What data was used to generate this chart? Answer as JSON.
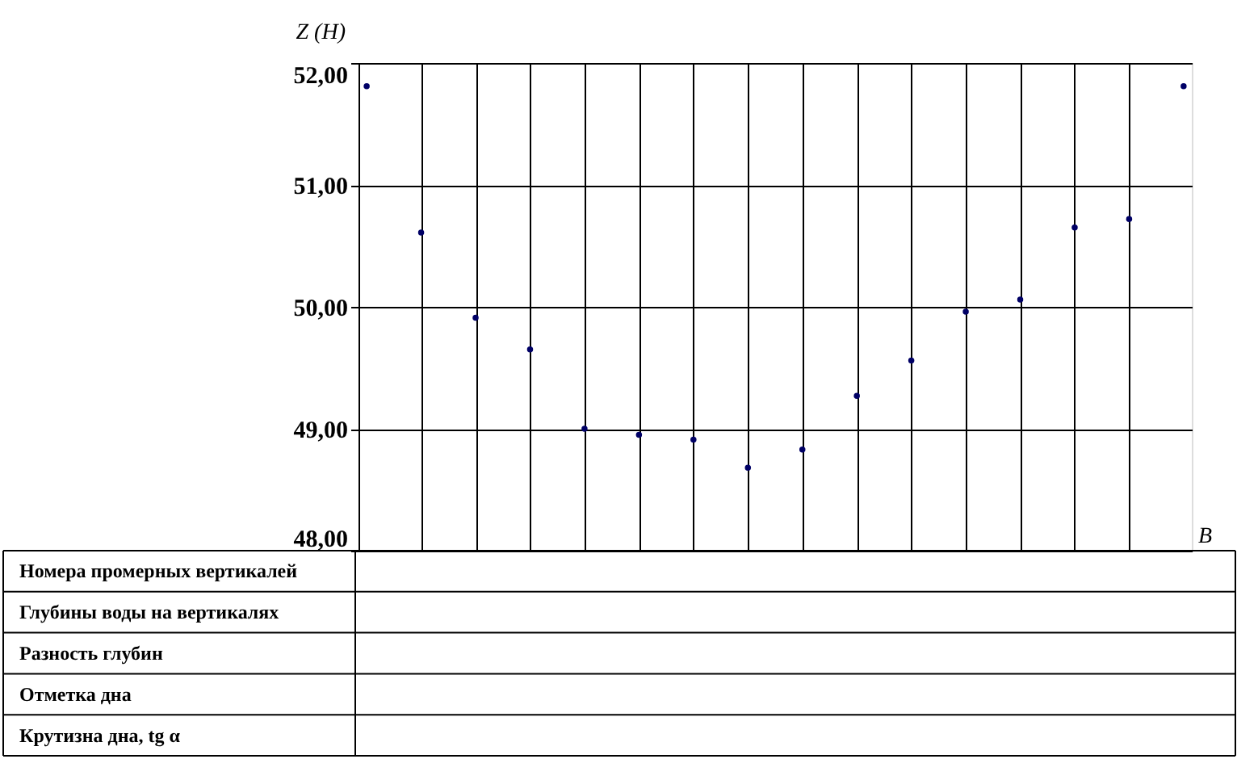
{
  "chart_data": {
    "type": "scatter",
    "xlabel": "B",
    "ylabel": "Z (H)",
    "categories": [
      null,
      null,
      null,
      null,
      null,
      null,
      null,
      null,
      null,
      null,
      null,
      null,
      null,
      null,
      null,
      null
    ],
    "series": [
      {
        "color": "#000066",
        "values": [
          51.81,
          50.61,
          49.91,
          49.65,
          49.0,
          48.95,
          48.91,
          48.68,
          48.83,
          49.27,
          49.56,
          49.96,
          50.06,
          50.65,
          50.72,
          51.81
        ]
      }
    ],
    "ylim": [
      48,
      52
    ],
    "yticks": [
      {
        "value": 48,
        "label": "48,00"
      },
      {
        "value": 49,
        "label": "49,00"
      },
      {
        "value": 50,
        "label": "50,00"
      },
      {
        "value": 51,
        "label": "51,00"
      },
      {
        "value": 52,
        "label": "52,00"
      }
    ],
    "grid": true,
    "marker": "circle",
    "annotations": [
      "Номера промерных вертикалей",
      "Глубины воды на вертикалях",
      "Разность глубин",
      "Отметка дна",
      "Крутизна дна, tg α"
    ]
  }
}
